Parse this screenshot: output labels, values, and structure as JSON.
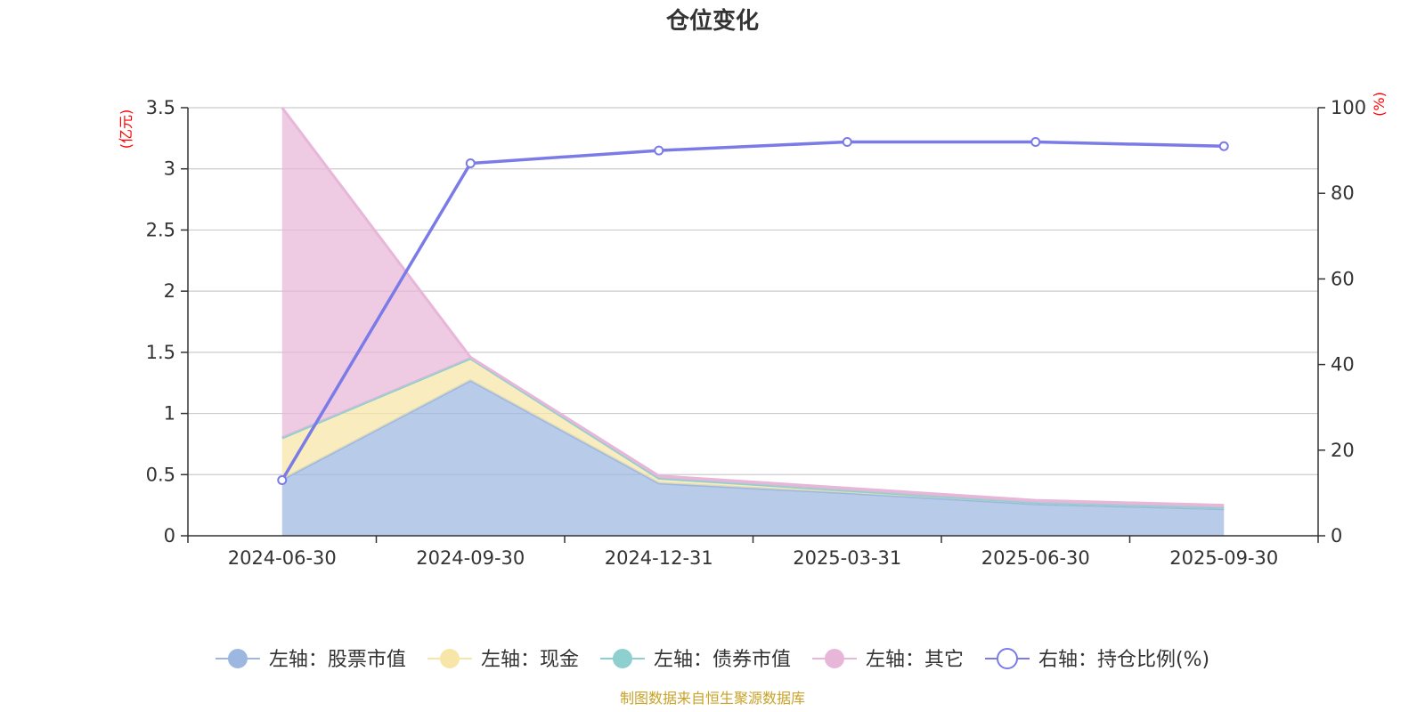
{
  "chart_data": {
    "type": "area",
    "title": "仓位变化",
    "categories": [
      "2024-06-30",
      "2024-09-30",
      "2024-12-31",
      "2025-03-31",
      "2025-06-30",
      "2025-09-30"
    ],
    "left_axis": {
      "unit": "(亿元)",
      "ylim": [
        0,
        3.5
      ],
      "ticks": [
        "0",
        "0.5",
        "1",
        "1.5",
        "2",
        "2.5",
        "3",
        "3.5"
      ]
    },
    "right_axis": {
      "unit": "(%)",
      "ylim": [
        0,
        100
      ],
      "ticks": [
        "0",
        "20",
        "40",
        "60",
        "80",
        "100"
      ]
    },
    "series": [
      {
        "name": "左轴：股票市值",
        "axis": "left",
        "type": "stacked-area",
        "color": "#9db8e0",
        "values": [
          0.46,
          1.27,
          0.43,
          0.35,
          0.26,
          0.22
        ]
      },
      {
        "name": "左轴：现金",
        "axis": "left",
        "type": "stacked-area",
        "color": "#f7e6a8",
        "values": [
          0.34,
          0.18,
          0.04,
          0.02,
          0.01,
          0.01
        ]
      },
      {
        "name": "左轴：债券市值",
        "axis": "left",
        "type": "stacked-area",
        "color": "#8ed0d0",
        "values": [
          0,
          0,
          0,
          0,
          0,
          0
        ]
      },
      {
        "name": "左轴：其它",
        "axis": "left",
        "type": "stacked-area",
        "color": "#e8b6d8",
        "values": [
          2.7,
          0.01,
          0.02,
          0.02,
          0.02,
          0.02
        ]
      },
      {
        "name": "右轴：持仓比例(%)",
        "axis": "right",
        "type": "line",
        "color": "#7b7be8",
        "values": [
          13,
          87,
          90,
          92,
          92,
          91
        ]
      }
    ],
    "legend_position": "bottom",
    "grid": true,
    "source": "制图数据来自恒生聚源数据库"
  }
}
